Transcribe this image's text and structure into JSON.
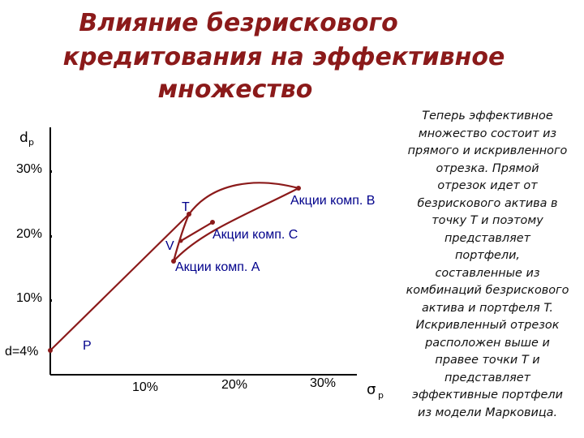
{
  "slide": {
    "title_lines": [
      "Влияние безрискового",
      "кредитования на эффективное",
      "множество"
    ],
    "side_text_lines": [
      "Теперь эффективное",
      "множество состоит из",
      "прямого и искривленного",
      "отрезка. Прямой",
      "отрезок идет от",
      "безрискового актива в",
      "точку T и поэтому",
      "представляет",
      "портфели,",
      "составленные из",
      "комбинаций безрискового",
      "актива и портфеля T.",
      "Искривленный отрезок",
      "расположен выше и",
      "правее точки T и",
      "представляет",
      "эффективные портфели",
      "из модели Марковица."
    ]
  },
  "colors": {
    "title": "#8b1a1a",
    "curve": "#8b1a1a",
    "axis": "#000000",
    "point_label": "#00008b"
  },
  "chart_data": {
    "type": "line",
    "ylabel_main": "d",
    "ylabel_sub": "p",
    "xlabel_main": "σ",
    "xlabel_sub": "p",
    "yticks": [
      "30%",
      "20%",
      "10%"
    ],
    "rf_label": "d=4%",
    "xticks": [
      "10%",
      "20%",
      "30%"
    ],
    "points": [
      {
        "id": "P",
        "label": "P"
      },
      {
        "id": "T",
        "label": "T"
      },
      {
        "id": "V",
        "label": "V"
      },
      {
        "id": "A",
        "label": "Акции комп. А"
      },
      {
        "id": "B",
        "label": "Акции комп. B"
      },
      {
        "id": "C",
        "label": "Акции комп. С"
      }
    ]
  }
}
